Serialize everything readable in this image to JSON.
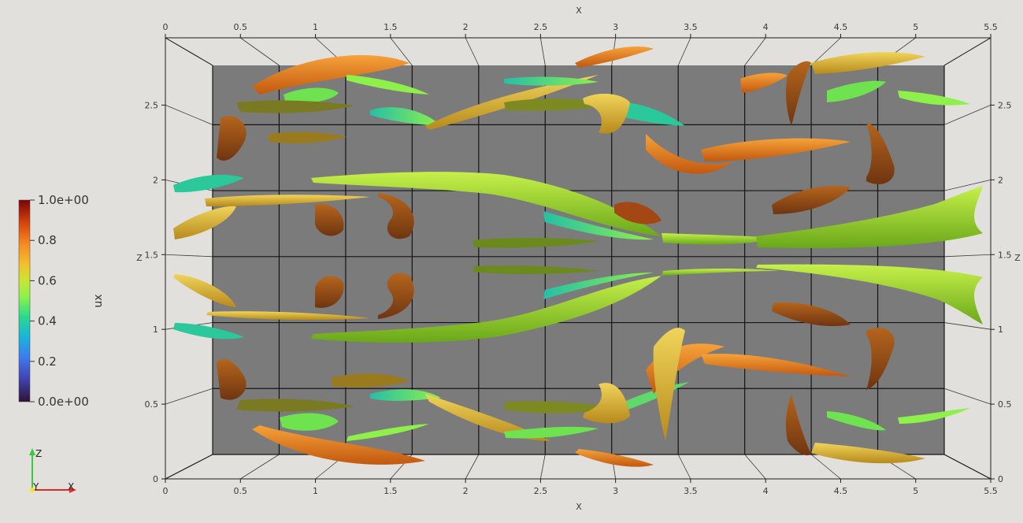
{
  "render_view": {
    "axes_grid": {
      "x_title": "X",
      "z_title": "Z",
      "x_ticks": [
        "0",
        "0.5",
        "1",
        "1.5",
        "2",
        "2.5",
        "3",
        "3.5",
        "4",
        "4.5",
        "5",
        "5.5"
      ],
      "z_ticks": [
        "0",
        "0.5",
        "1",
        "1.5",
        "2",
        "2.5"
      ],
      "x_range": [
        0,
        5.5
      ],
      "z_range": [
        0,
        2.95
      ]
    },
    "colorbar": {
      "title": "ux",
      "range": [
        0,
        1
      ],
      "labels": [
        "1.0e+00",
        "0.8",
        "0.6",
        "0.4",
        "0.2",
        "0.0e+00"
      ],
      "colormap": "Turbo"
    },
    "orientation": {
      "z": "Z",
      "y": "Y",
      "x": "X"
    },
    "colors": {
      "background": "#e1e0dc",
      "inner_box": "#7b7b7b",
      "gridline": "#141414"
    }
  }
}
